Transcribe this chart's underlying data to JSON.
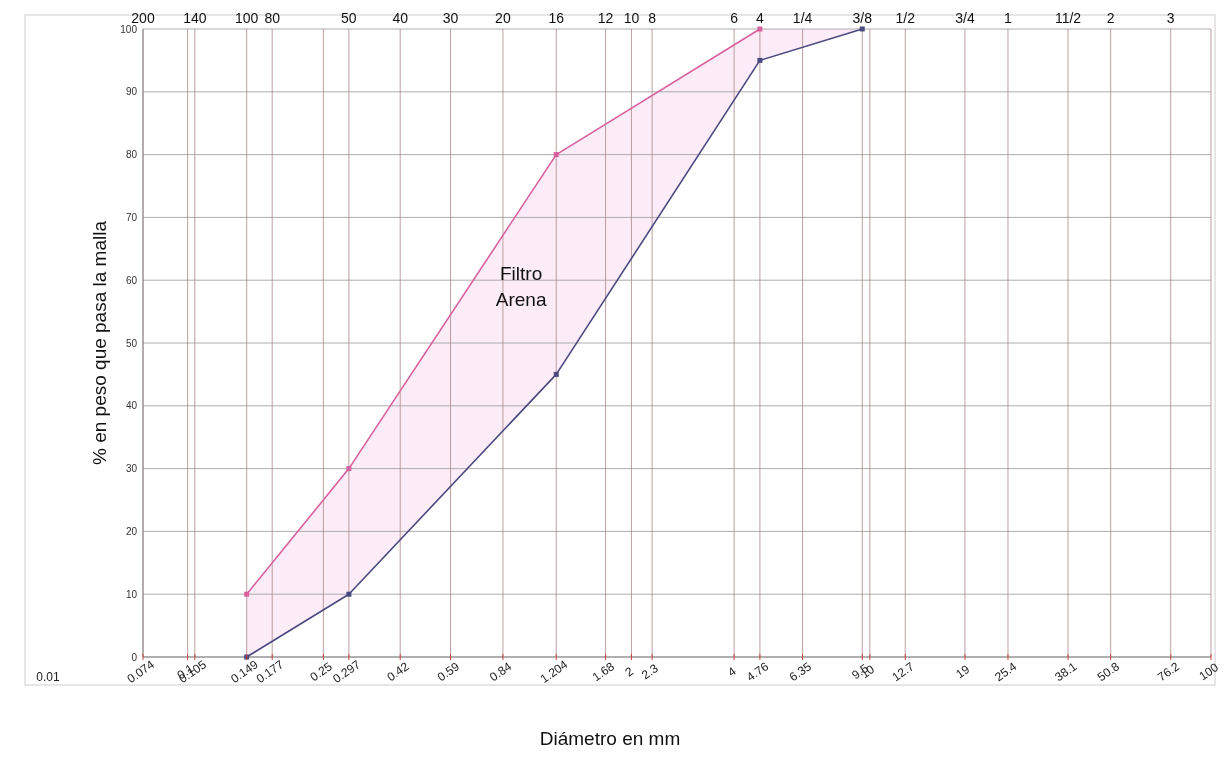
{
  "chart_data": {
    "type": "line",
    "xlabel": "Diámetro en mm",
    "ylabel": "% en peso que pasa la malla",
    "log": "x",
    "xlim": [
      0.074,
      100
    ],
    "xticks": [
      0.074,
      0.1,
      0.105,
      0.149,
      0.177,
      0.25,
      0.297,
      0.42,
      0.59,
      0.84,
      1.204,
      1.68,
      2,
      2.3,
      4,
      4.76,
      6.35,
      9.5,
      10,
      12.7,
      19,
      25.4,
      38.1,
      50.8,
      76.2,
      100
    ],
    "ylim": [
      0,
      100
    ],
    "yticks": [
      0,
      10,
      20,
      30,
      40,
      50,
      60,
      70,
      80,
      90,
      100
    ],
    "grid": true,
    "marker": "square",
    "series": [
      {
        "color": "#d8609e",
        "x": [
          0.149,
          0.297,
          1.204,
          4.76
        ],
        "values": [
          10,
          30,
          80,
          100
        ]
      },
      {
        "color": "#4a4a80",
        "x": [
          0.149,
          0.297,
          1.204,
          4.76,
          9.5
        ],
        "values": [
          0,
          10,
          45,
          95,
          100
        ]
      }
    ],
    "annotations": [
      "0.01",
      "Filtro\nArena",
      "200",
      "140",
      "100",
      "80",
      "50",
      "40",
      "30",
      "20",
      "16",
      "12",
      "10",
      "8",
      "6",
      "4",
      "1/4",
      "3/8",
      "1/2",
      "3/4",
      "1",
      "11/2",
      "2",
      "3"
    ]
  }
}
